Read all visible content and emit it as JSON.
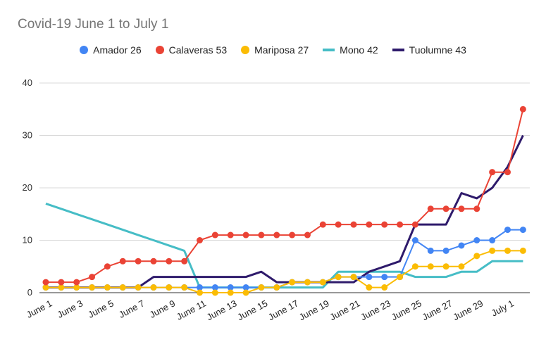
{
  "chart_data": {
    "type": "line",
    "title": "Covid-19 June 1 to July 1",
    "xlabel": "",
    "ylabel": "",
    "ylim": [
      0,
      40
    ],
    "yticks": [
      0,
      10,
      20,
      30,
      40
    ],
    "grid": true,
    "legend_position": "top",
    "x": [
      "June 1",
      "June 2",
      "June 3",
      "June 4",
      "June 5",
      "June 6",
      "June 7",
      "June 8",
      "June 9",
      "June 10",
      "June 11",
      "June 12",
      "June 13",
      "June 14",
      "June 15",
      "June 16",
      "June 17",
      "June 18",
      "June 19",
      "June 20",
      "June 21",
      "June 22",
      "June 23",
      "June 24",
      "June 25",
      "June 26",
      "June 27",
      "June 28",
      "June 29",
      "June 30",
      "July 1",
      "July 2"
    ],
    "xtick_labels": [
      "June 1",
      "June 3",
      "June 5",
      "June 7",
      "June 9",
      "June 11",
      "June 13",
      "June 15",
      "June 17",
      "June 19",
      "June 21",
      "June 23",
      "June 25",
      "June 27",
      "June 29",
      "July 1"
    ],
    "series": [
      {
        "name": "Amador 26",
        "color": "#4285f4",
        "style": "line-dots",
        "values": [
          1,
          1,
          1,
          1,
          1,
          1,
          1,
          1,
          1,
          1,
          1,
          1,
          1,
          1,
          1,
          1,
          2,
          2,
          2,
          3,
          3,
          3,
          3,
          3,
          10,
          8,
          8,
          9,
          10,
          10,
          12,
          12
        ]
      },
      {
        "name": "Calaveras 53",
        "color": "#ea4335",
        "style": "line-dots",
        "values": [
          2,
          2,
          2,
          3,
          5,
          6,
          6,
          6,
          6,
          6,
          10,
          11,
          11,
          11,
          11,
          11,
          11,
          11,
          13,
          13,
          13,
          13,
          13,
          13,
          13,
          16,
          16,
          16,
          16,
          23,
          23,
          35
        ]
      },
      {
        "name": "Mariposa 27",
        "color": "#fbbc04",
        "style": "line-dots",
        "values": [
          1,
          1,
          1,
          1,
          1,
          1,
          1,
          1,
          1,
          1,
          0,
          0,
          0,
          0,
          1,
          1,
          2,
          2,
          2,
          3,
          3,
          1,
          1,
          3,
          5,
          5,
          5,
          5,
          7,
          8,
          8,
          8
        ]
      },
      {
        "name": "Mono 42",
        "color": "#46bdc6",
        "style": "thick-line",
        "values": [
          17,
          16,
          15,
          14,
          13,
          12,
          11,
          10,
          9,
          8,
          1,
          1,
          1,
          1,
          1,
          1,
          1,
          1,
          1,
          4,
          4,
          4,
          4,
          4,
          3,
          3,
          3,
          4,
          4,
          6,
          6,
          6
        ]
      },
      {
        "name": "Tuolumne 43",
        "color": "#2e1a6b",
        "style": "thick-line",
        "values": [
          1,
          1,
          1,
          1,
          1,
          1,
          1,
          3,
          3,
          3,
          3,
          3,
          3,
          3,
          4,
          2,
          2,
          2,
          2,
          2,
          2,
          4,
          5,
          6,
          13,
          13,
          13,
          19,
          18,
          20,
          24,
          30
        ]
      }
    ]
  }
}
